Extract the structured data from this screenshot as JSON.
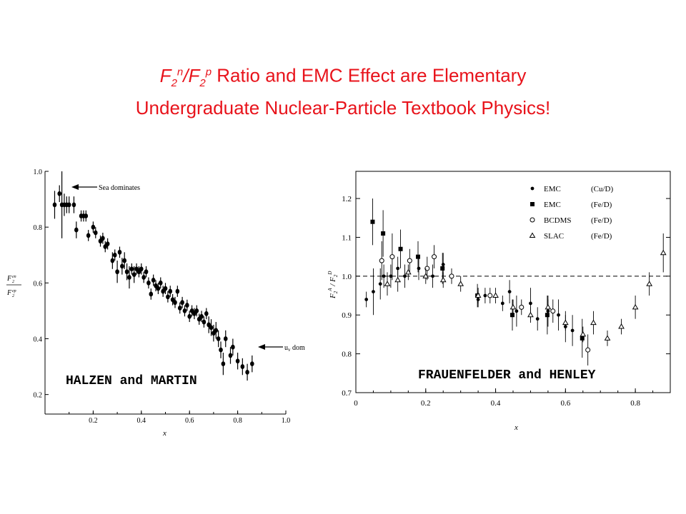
{
  "title": {
    "formula_F": "F",
    "formula_sub": "2",
    "formula_sup_n": "n",
    "formula_slash": "/F",
    "formula_sup_p": "p",
    "line1_rest": " Ratio and EMC Effect are Elementary",
    "line2": "Undergraduate Nuclear-Particle Textbook Physics!",
    "color": "#e8131b"
  },
  "chart_data": [
    {
      "type": "scatter",
      "source_label": "HALZEN and MARTIN",
      "xlabel": "x",
      "ylabel": "F2en / F2ep",
      "ylabel_num": "F",
      "ylabel_den": "F",
      "xlim": [
        0,
        1.0
      ],
      "ylim": [
        0.13,
        1.0
      ],
      "x_ticks": [
        "0.2",
        "0.4",
        "0.6",
        "0.8",
        "1.0"
      ],
      "y_ticks": [
        "0.2",
        "0.4",
        "0.6",
        "0.8",
        "1.0"
      ],
      "annotations": [
        {
          "text": "Sea dominates",
          "x": 0.1,
          "y": 0.9
        },
        {
          "text": "u",
          "sub": "v",
          "rest": " dom",
          "x": 0.96,
          "y": 0.28
        }
      ],
      "points": [
        {
          "x": 0.04,
          "y": 0.88,
          "e": 0.05
        },
        {
          "x": 0.06,
          "y": 0.92,
          "e": 0.03
        },
        {
          "x": 0.07,
          "y": 0.88,
          "e": 0.12
        },
        {
          "x": 0.08,
          "y": 0.88,
          "e": 0.04
        },
        {
          "x": 0.09,
          "y": 0.88,
          "e": 0.03
        },
        {
          "x": 0.1,
          "y": 0.88,
          "e": 0.03
        },
        {
          "x": 0.12,
          "y": 0.88,
          "e": 0.03
        },
        {
          "x": 0.13,
          "y": 0.79,
          "e": 0.03
        },
        {
          "x": 0.15,
          "y": 0.84,
          "e": 0.02
        },
        {
          "x": 0.16,
          "y": 0.84,
          "e": 0.02
        },
        {
          "x": 0.17,
          "y": 0.84,
          "e": 0.02
        },
        {
          "x": 0.18,
          "y": 0.77,
          "e": 0.02
        },
        {
          "x": 0.2,
          "y": 0.8,
          "e": 0.02
        },
        {
          "x": 0.21,
          "y": 0.78,
          "e": 0.02
        },
        {
          "x": 0.23,
          "y": 0.75,
          "e": 0.02
        },
        {
          "x": 0.24,
          "y": 0.76,
          "e": 0.02
        },
        {
          "x": 0.25,
          "y": 0.73,
          "e": 0.02
        },
        {
          "x": 0.26,
          "y": 0.74,
          "e": 0.02
        },
        {
          "x": 0.28,
          "y": 0.68,
          "e": 0.03
        },
        {
          "x": 0.29,
          "y": 0.7,
          "e": 0.02
        },
        {
          "x": 0.3,
          "y": 0.64,
          "e": 0.04
        },
        {
          "x": 0.31,
          "y": 0.71,
          "e": 0.02
        },
        {
          "x": 0.32,
          "y": 0.66,
          "e": 0.03
        },
        {
          "x": 0.33,
          "y": 0.68,
          "e": 0.03
        },
        {
          "x": 0.34,
          "y": 0.64,
          "e": 0.03
        },
        {
          "x": 0.35,
          "y": 0.62,
          "e": 0.04
        },
        {
          "x": 0.36,
          "y": 0.65,
          "e": 0.02
        },
        {
          "x": 0.37,
          "y": 0.63,
          "e": 0.03
        },
        {
          "x": 0.38,
          "y": 0.65,
          "e": 0.02
        },
        {
          "x": 0.39,
          "y": 0.64,
          "e": 0.02
        },
        {
          "x": 0.4,
          "y": 0.65,
          "e": 0.02
        },
        {
          "x": 0.41,
          "y": 0.62,
          "e": 0.02
        },
        {
          "x": 0.42,
          "y": 0.64,
          "e": 0.02
        },
        {
          "x": 0.43,
          "y": 0.6,
          "e": 0.02
        },
        {
          "x": 0.44,
          "y": 0.56,
          "e": 0.02
        },
        {
          "x": 0.45,
          "y": 0.61,
          "e": 0.02
        },
        {
          "x": 0.46,
          "y": 0.59,
          "e": 0.02
        },
        {
          "x": 0.47,
          "y": 0.58,
          "e": 0.02
        },
        {
          "x": 0.48,
          "y": 0.6,
          "e": 0.02
        },
        {
          "x": 0.49,
          "y": 0.57,
          "e": 0.02
        },
        {
          "x": 0.5,
          "y": 0.58,
          "e": 0.02
        },
        {
          "x": 0.51,
          "y": 0.55,
          "e": 0.02
        },
        {
          "x": 0.52,
          "y": 0.57,
          "e": 0.02
        },
        {
          "x": 0.53,
          "y": 0.54,
          "e": 0.02
        },
        {
          "x": 0.54,
          "y": 0.53,
          "e": 0.02
        },
        {
          "x": 0.55,
          "y": 0.57,
          "e": 0.02
        },
        {
          "x": 0.56,
          "y": 0.51,
          "e": 0.02
        },
        {
          "x": 0.57,
          "y": 0.53,
          "e": 0.02
        },
        {
          "x": 0.58,
          "y": 0.5,
          "e": 0.02
        },
        {
          "x": 0.59,
          "y": 0.52,
          "e": 0.02
        },
        {
          "x": 0.6,
          "y": 0.48,
          "e": 0.02
        },
        {
          "x": 0.61,
          "y": 0.5,
          "e": 0.02
        },
        {
          "x": 0.62,
          "y": 0.49,
          "e": 0.02
        },
        {
          "x": 0.63,
          "y": 0.5,
          "e": 0.02
        },
        {
          "x": 0.64,
          "y": 0.47,
          "e": 0.02
        },
        {
          "x": 0.65,
          "y": 0.48,
          "e": 0.02
        },
        {
          "x": 0.66,
          "y": 0.46,
          "e": 0.02
        },
        {
          "x": 0.67,
          "y": 0.49,
          "e": 0.02
        },
        {
          "x": 0.68,
          "y": 0.45,
          "e": 0.03
        },
        {
          "x": 0.69,
          "y": 0.44,
          "e": 0.03
        },
        {
          "x": 0.7,
          "y": 0.42,
          "e": 0.03
        },
        {
          "x": 0.71,
          "y": 0.43,
          "e": 0.03
        },
        {
          "x": 0.72,
          "y": 0.4,
          "e": 0.03
        },
        {
          "x": 0.73,
          "y": 0.36,
          "e": 0.03
        },
        {
          "x": 0.74,
          "y": 0.31,
          "e": 0.04
        },
        {
          "x": 0.75,
          "y": 0.4,
          "e": 0.03
        },
        {
          "x": 0.77,
          "y": 0.34,
          "e": 0.03
        },
        {
          "x": 0.78,
          "y": 0.37,
          "e": 0.03
        },
        {
          "x": 0.8,
          "y": 0.32,
          "e": 0.03
        },
        {
          "x": 0.82,
          "y": 0.3,
          "e": 0.03
        },
        {
          "x": 0.84,
          "y": 0.28,
          "e": 0.03
        },
        {
          "x": 0.86,
          "y": 0.31,
          "e": 0.03
        }
      ]
    },
    {
      "type": "scatter",
      "source_label": "FRAUENFELDER and HENLEY",
      "xlabel": "x",
      "ylabel": "F2A / F2D",
      "ylabel_num": "F",
      "ylabel_den": "F",
      "xlim": [
        0,
        0.9
      ],
      "ylim": [
        0.7,
        1.27
      ],
      "x_ticks": [
        "0",
        "0.2",
        "0.4",
        "0.6",
        "0.8"
      ],
      "y_ticks": [
        "0.7",
        "0.8",
        "0.9",
        "1.0",
        "1.1",
        "1.2"
      ],
      "reference_line": 1.0,
      "legend_position": "top-right",
      "series": [
        {
          "name": "EMC",
          "target": "(Cu/D)",
          "marker": "dot",
          "points": [
            [
              0.03,
              0.94,
              0.02
            ],
            [
              0.05,
              0.96,
              0.06
            ],
            [
              0.07,
              0.98,
              0.04
            ],
            [
              0.08,
              1.0,
              0.03
            ],
            [
              0.1,
              1.0,
              0.03
            ],
            [
              0.12,
              1.02,
              0.03
            ],
            [
              0.14,
              1.0,
              0.03
            ],
            [
              0.18,
              1.02,
              0.03
            ],
            [
              0.22,
              1.0,
              0.03
            ],
            [
              0.25,
              1.03,
              0.03
            ],
            [
              0.35,
              0.94,
              0.02
            ],
            [
              0.37,
              0.95,
              0.02
            ],
            [
              0.42,
              0.93,
              0.02
            ],
            [
              0.44,
              0.96,
              0.03
            ],
            [
              0.46,
              0.91,
              0.04
            ],
            [
              0.5,
              0.93,
              0.04
            ],
            [
              0.52,
              0.89,
              0.03
            ],
            [
              0.55,
              0.91,
              0.04
            ],
            [
              0.58,
              0.9,
              0.04
            ],
            [
              0.6,
              0.87,
              0.04
            ],
            [
              0.62,
              0.86,
              0.04
            ]
          ]
        },
        {
          "name": "EMC",
          "target": "(Fe/D)",
          "marker": "square",
          "points": [
            [
              0.05,
              1.14,
              0.06
            ],
            [
              0.08,
              1.11,
              0.06
            ],
            [
              0.13,
              1.07,
              0.05
            ],
            [
              0.18,
              1.05,
              0.04
            ],
            [
              0.25,
              1.02,
              0.04
            ],
            [
              0.35,
              0.95,
              0.03
            ],
            [
              0.45,
              0.9,
              0.04
            ],
            [
              0.55,
              0.9,
              0.05
            ],
            [
              0.65,
              0.84,
              0.05
            ]
          ]
        },
        {
          "name": "BCDMS",
          "target": "(Fe/D)",
          "marker": "circle",
          "points": [
            [
              0.07,
              1.04,
              0.05
            ],
            [
              0.1,
              1.05,
              0.06
            ],
            [
              0.15,
              1.04,
              0.03
            ],
            [
              0.2,
              1.02,
              0.03
            ],
            [
              0.22,
              1.05,
              0.03
            ],
            [
              0.27,
              1.0,
              0.02
            ],
            [
              0.38,
              0.95,
              0.02
            ],
            [
              0.47,
              0.92,
              0.02
            ],
            [
              0.56,
              0.91,
              0.03
            ],
            [
              0.66,
              0.81,
              0.04
            ]
          ]
        },
        {
          "name": "SLAC",
          "target": "(Fe/D)",
          "marker": "triangle",
          "points": [
            [
              0.09,
              0.98,
              0.03
            ],
            [
              0.12,
              0.99,
              0.03
            ],
            [
              0.15,
              1.01,
              0.02
            ],
            [
              0.2,
              1.0,
              0.02
            ],
            [
              0.25,
              0.99,
              0.02
            ],
            [
              0.3,
              0.98,
              0.02
            ],
            [
              0.35,
              0.95,
              0.02
            ],
            [
              0.4,
              0.95,
              0.02
            ],
            [
              0.45,
              0.92,
              0.02
            ],
            [
              0.5,
              0.9,
              0.02
            ],
            [
              0.55,
              0.92,
              0.02
            ],
            [
              0.6,
              0.88,
              0.02
            ],
            [
              0.65,
              0.85,
              0.02
            ],
            [
              0.68,
              0.88,
              0.03
            ],
            [
              0.72,
              0.84,
              0.02
            ],
            [
              0.76,
              0.87,
              0.02
            ],
            [
              0.8,
              0.92,
              0.03
            ],
            [
              0.84,
              0.98,
              0.03
            ],
            [
              0.88,
              1.06,
              0.05
            ]
          ]
        }
      ]
    }
  ]
}
